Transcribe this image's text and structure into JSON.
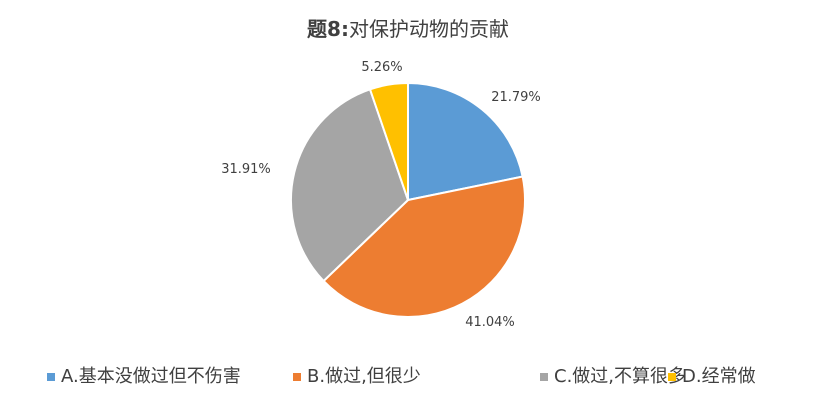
{
  "chart_data": {
    "type": "pie",
    "title_prefix": "题8:",
    "title_text": "对保护动物的贡献",
    "series": [
      {
        "name": "A.基本没做过但不伤害",
        "value": 21.79,
        "label": "21.79%",
        "color": "#5B9BD5"
      },
      {
        "name": "B.做过,但很少",
        "value": 41.04,
        "label": "41.04%",
        "color": "#ED7D31"
      },
      {
        "name": "C.做过,不算很多",
        "value": 31.91,
        "label": "31.91%",
        "color": "#A5A5A5"
      },
      {
        "name": "D.经常做",
        "value": 5.26,
        "label": "5.26%",
        "color": "#FFC000"
      }
    ],
    "start_angle_deg": 0,
    "direction": "clockwise",
    "legend_position": "bottom"
  }
}
